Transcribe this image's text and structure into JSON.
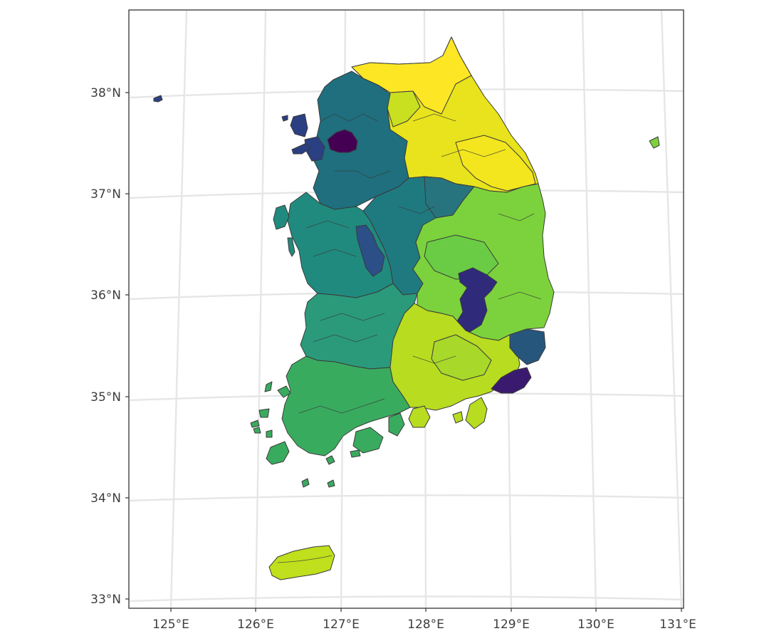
{
  "axes": {
    "x_ticks": [
      "125°E",
      "126°E",
      "127°E",
      "128°E",
      "129°E",
      "130°E",
      "131°E"
    ],
    "y_ticks": [
      "38°N",
      "37°N",
      "36°N",
      "35°N",
      "34°N",
      "33°N"
    ]
  },
  "colors": {
    "palette": "viridis",
    "darkest": "#440154",
    "dark_blue": "#2b3f83",
    "blue_teal": "#27567d",
    "teal": "#1f6f7e",
    "teal_green": "#218a7e",
    "green": "#39ab5f",
    "light_green": "#7cd23c",
    "yellow_green": "#b8dc20",
    "yellow": "#e8e31c",
    "bright_yellow": "#fde725"
  }
}
